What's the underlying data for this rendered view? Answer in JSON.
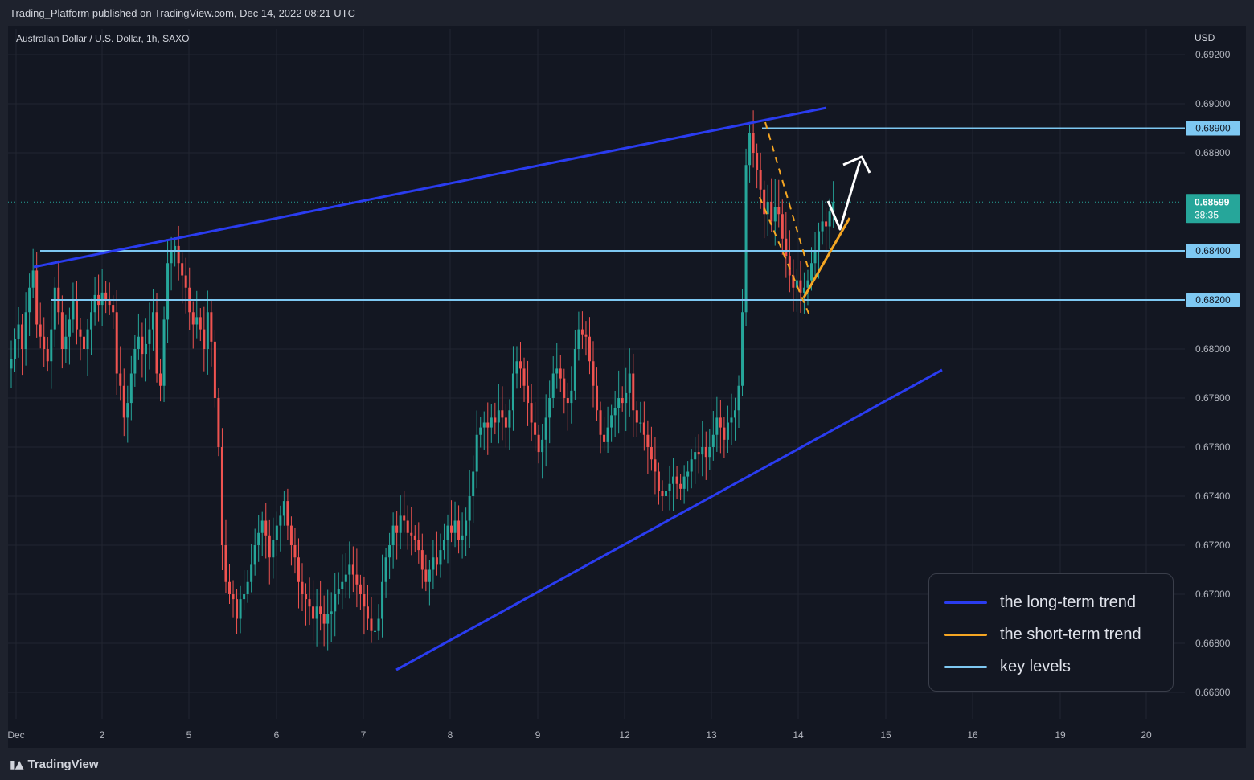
{
  "header": {
    "publisher_text": "Trading_Platform published on TradingView.com, Dec 14, 2022 08:21 UTC"
  },
  "footer": {
    "brand": "TradingView",
    "logo_icon": "tradingview-logo-icon"
  },
  "chart_data": {
    "type": "candlestick",
    "title": "Australian Dollar / U.S. Dollar, 1h, SAXO",
    "currency": "USD",
    "y_ticks": [
      "0.69200",
      "0.69000",
      "0.68800",
      "0.68000",
      "0.67800",
      "0.67600",
      "0.67400",
      "0.67200",
      "0.67000",
      "0.66800",
      "0.66600"
    ],
    "x_ticks": [
      "Dec",
      "2",
      "5",
      "6",
      "7",
      "8",
      "9",
      "12",
      "13",
      "14",
      "15",
      "16",
      "19",
      "20"
    ],
    "ylim": [
      0.6655,
      0.6928
    ],
    "key_levels": [
      {
        "label": "0.68900",
        "value": 0.689
      },
      {
        "label": "0.68400",
        "value": 0.684
      },
      {
        "label": "0.68200",
        "value": 0.682
      }
    ],
    "current_price": {
      "label": "0.68599",
      "value": 0.68599,
      "countdown": "38:35"
    },
    "colors": {
      "up": "#26a69a",
      "down": "#ef5350",
      "long_term": "#2a3cf0",
      "short_term": "#f5a623",
      "key_level": "#7ec8f2",
      "price_line": "#26a69a"
    },
    "legend": [
      {
        "label": "the long-term trend",
        "color": "#2a3cf0"
      },
      {
        "label": "the short-term trend",
        "color": "#f5a623"
      },
      {
        "label": "key levels",
        "color": "#7ec8f2"
      }
    ],
    "close_series": [
      0.6796,
      0.6804,
      0.681,
      0.68,
      0.6815,
      0.6825,
      0.6832,
      0.681,
      0.6805,
      0.68,
      0.6795,
      0.6808,
      0.6825,
      0.6815,
      0.68,
      0.6805,
      0.6812,
      0.682,
      0.6808,
      0.6805,
      0.68,
      0.6808,
      0.6815,
      0.6822,
      0.6818,
      0.6823,
      0.682,
      0.6818,
      0.6815,
      0.679,
      0.6785,
      0.6772,
      0.6778,
      0.679,
      0.68,
      0.6805,
      0.6798,
      0.6802,
      0.6808,
      0.6815,
      0.679,
      0.6785,
      0.6812,
      0.6835,
      0.684,
      0.6842,
      0.6835,
      0.683,
      0.6825,
      0.6815,
      0.681,
      0.6813,
      0.6808,
      0.68,
      0.6815,
      0.6803,
      0.678,
      0.676,
      0.672,
      0.6705,
      0.67,
      0.6698,
      0.669,
      0.6698,
      0.67,
      0.6705,
      0.6712,
      0.672,
      0.6725,
      0.673,
      0.6724,
      0.6715,
      0.6722,
      0.6728,
      0.6732,
      0.6738,
      0.6728,
      0.672,
      0.6715,
      0.6705,
      0.67,
      0.6698,
      0.6695,
      0.669,
      0.6695,
      0.6692,
      0.6688,
      0.6692,
      0.6693,
      0.67,
      0.6702,
      0.6705,
      0.6708,
      0.6712,
      0.6708,
      0.6704,
      0.67,
      0.6695,
      0.669,
      0.6685,
      0.6685,
      0.669,
      0.6705,
      0.6715,
      0.672,
      0.6728,
      0.6725,
      0.6732,
      0.673,
      0.6725,
      0.6724,
      0.6722,
      0.6718,
      0.671,
      0.6705,
      0.671,
      0.6715,
      0.6712,
      0.6718,
      0.6722,
      0.6728,
      0.6725,
      0.673,
      0.6722,
      0.6724,
      0.673,
      0.674,
      0.675,
      0.6765,
      0.6768,
      0.677,
      0.6768,
      0.6772,
      0.677,
      0.6775,
      0.6772,
      0.6768,
      0.6775,
      0.679,
      0.6795,
      0.6792,
      0.6785,
      0.6778,
      0.677,
      0.6765,
      0.6758,
      0.6763,
      0.6772,
      0.678,
      0.679,
      0.6792,
      0.6788,
      0.678,
      0.6778,
      0.6783,
      0.68,
      0.6808,
      0.6806,
      0.6805,
      0.6795,
      0.6785,
      0.6775,
      0.6765,
      0.6762,
      0.6768,
      0.6773,
      0.6776,
      0.678,
      0.6778,
      0.6782,
      0.679,
      0.6775,
      0.677,
      0.677,
      0.6765,
      0.676,
      0.6755,
      0.675,
      0.6742,
      0.674,
      0.6742,
      0.6745,
      0.6748,
      0.6745,
      0.6743,
      0.6748,
      0.675,
      0.6755,
      0.6758,
      0.6757,
      0.676,
      0.6756,
      0.676,
      0.6765,
      0.6772,
      0.6768,
      0.6763,
      0.677,
      0.6772,
      0.6775,
      0.6785,
      0.6815,
      0.6875,
      0.6888,
      0.688,
      0.6873,
      0.6865,
      0.6855,
      0.686,
      0.6852,
      0.6858,
      0.6855,
      0.6845,
      0.6838,
      0.683,
      0.6825,
      0.6828,
      0.6823,
      0.6825,
      0.6828,
      0.6835,
      0.684,
      0.6848,
      0.6852,
      0.685,
      0.6856,
      0.68599
    ]
  }
}
